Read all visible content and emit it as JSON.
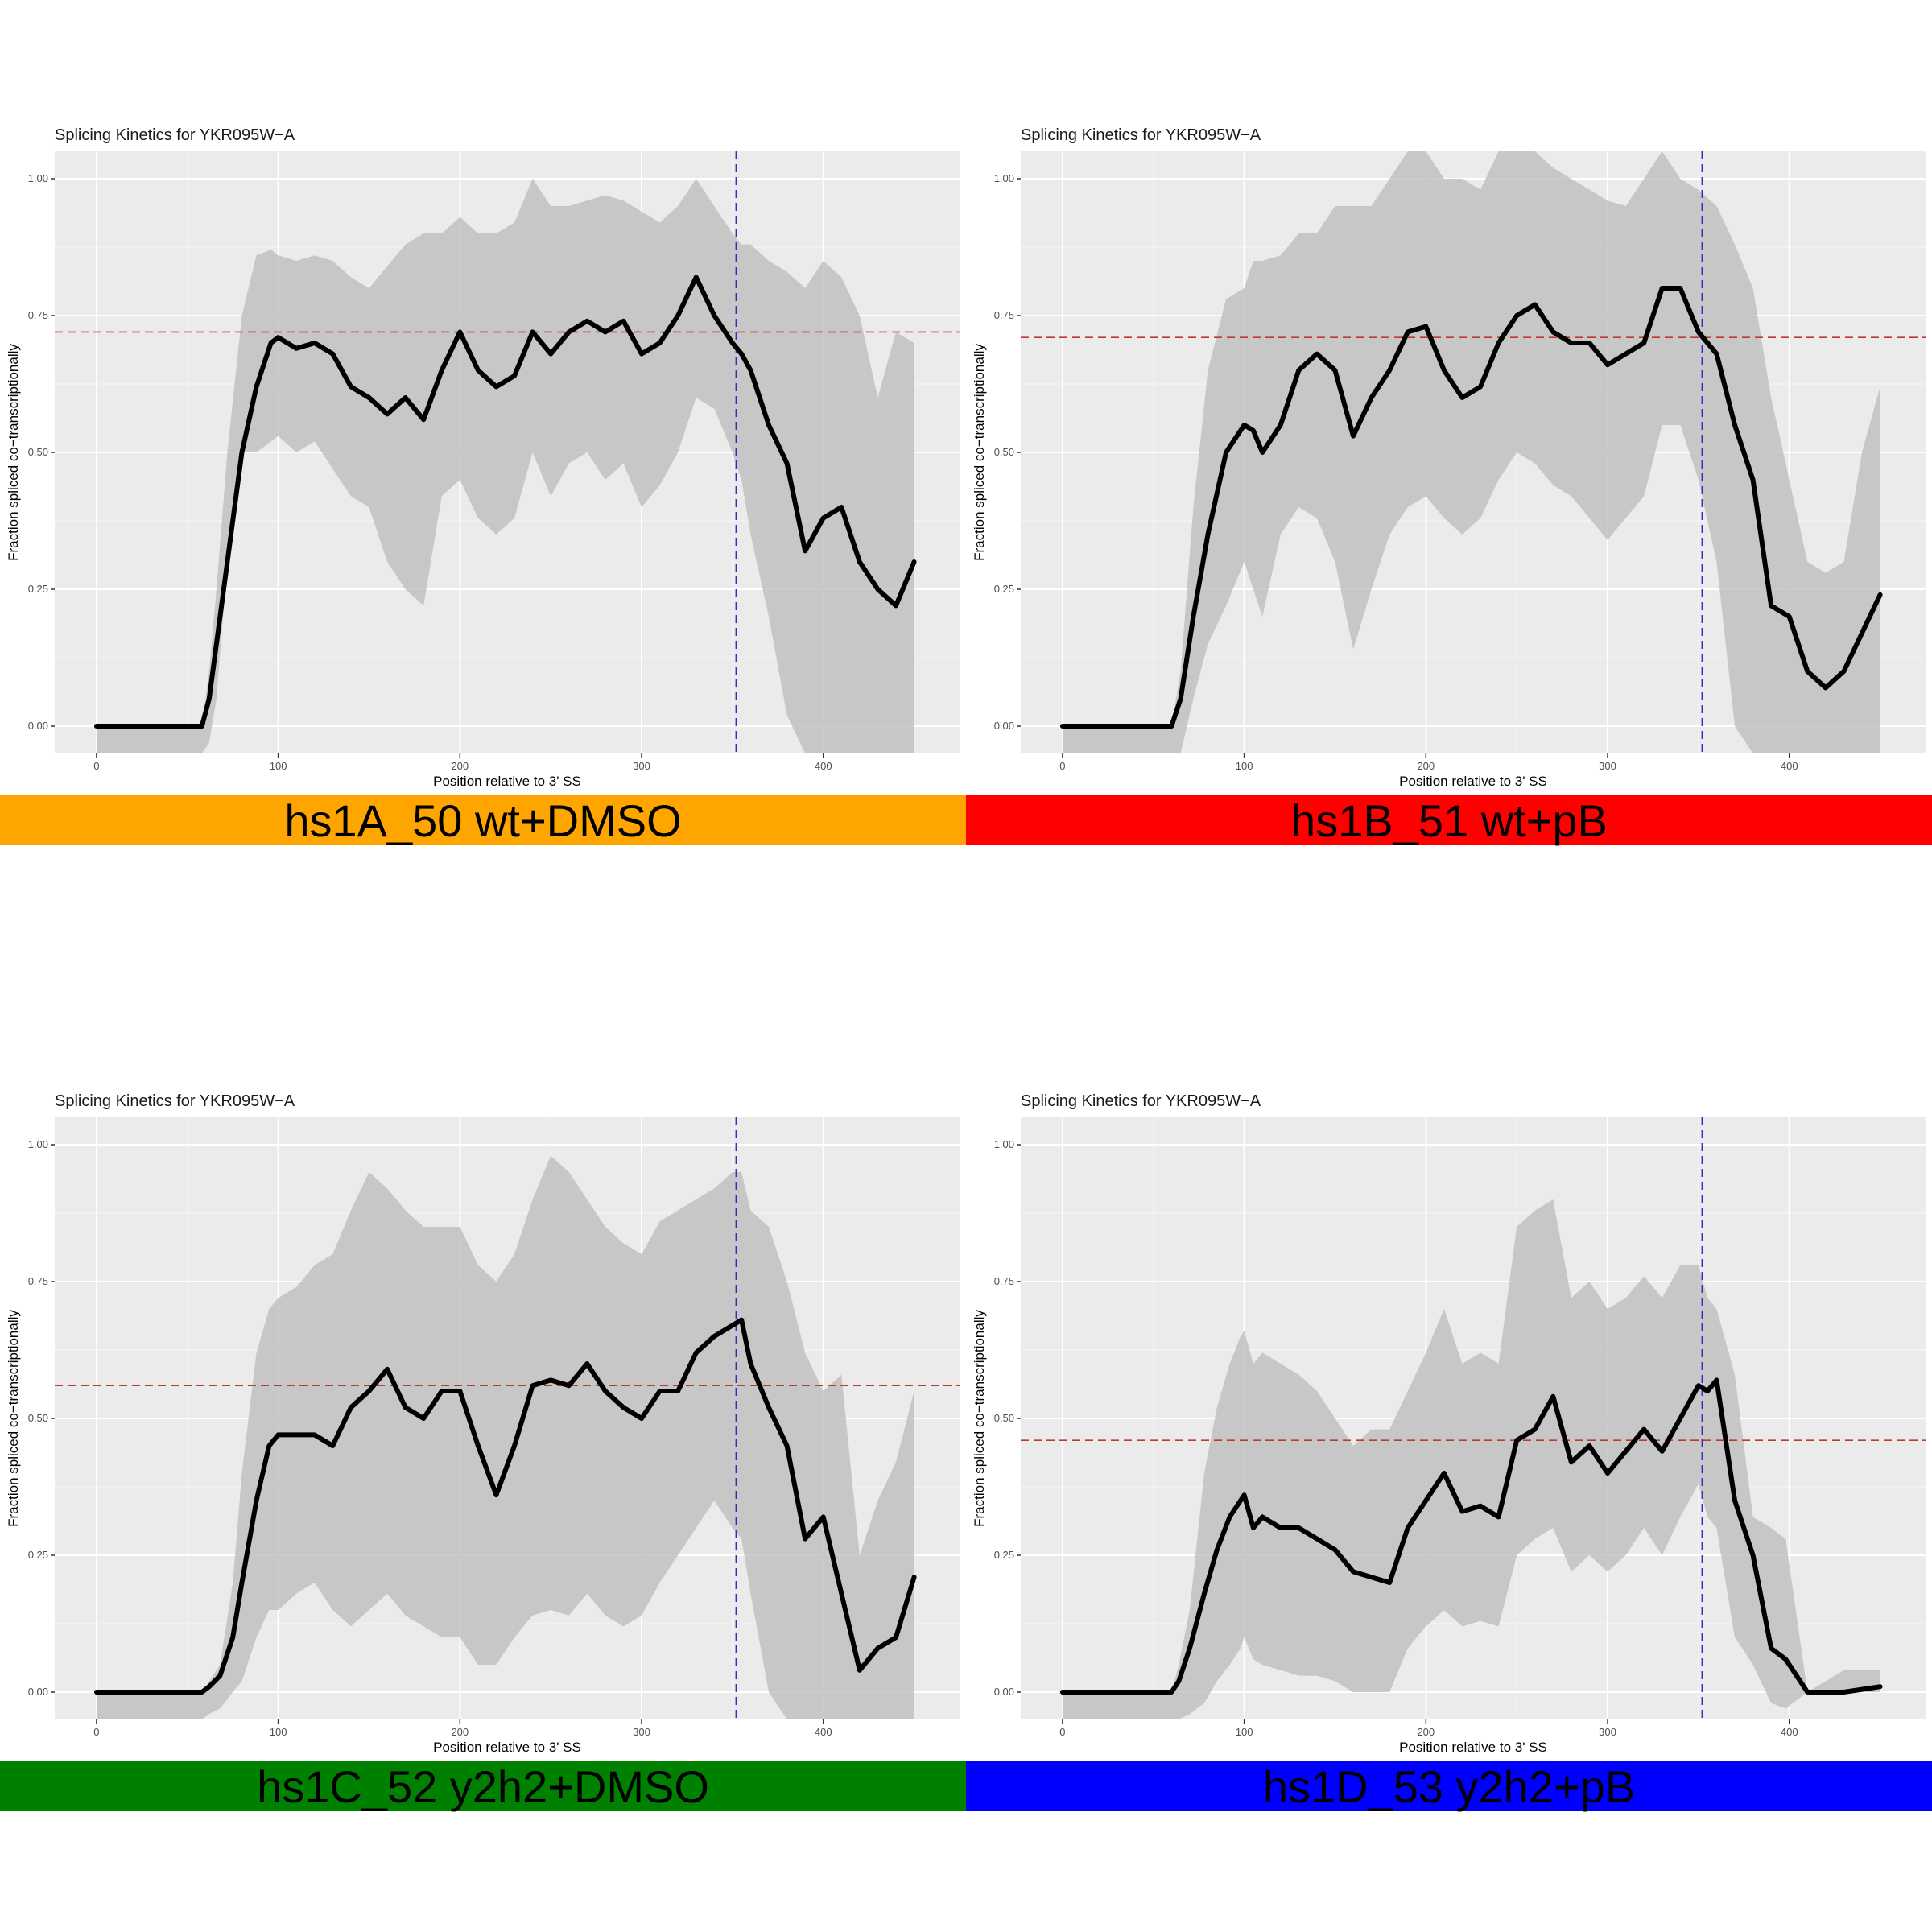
{
  "chart_data": [
    {
      "type": "line",
      "title": "Splicing Kinetics for YKR095W−A",
      "xlabel": "Position relative to 3' SS",
      "ylabel": "Fraction spliced co−transcriptionally",
      "xlim": [
        -23,
        475
      ],
      "ylim": [
        -0.05,
        1.05
      ],
      "x_ticks": [
        "0",
        "100",
        "200",
        "300",
        "400"
      ],
      "y_ticks": [
        "0.00",
        "0.25",
        "0.50",
        "0.75",
        "1.00"
      ],
      "ref_hline": 0.72,
      "ref_vline": 352,
      "label": "hs1A_50 wt+DMSO",
      "label_color": "#FFA500",
      "series": [
        {
          "x": [
            0,
            58,
            62,
            66,
            72,
            80,
            88,
            96,
            100,
            110,
            120,
            130,
            140,
            150,
            160,
            170,
            180,
            190,
            200,
            210,
            220,
            230,
            240,
            250,
            260,
            270,
            280,
            290,
            300,
            310,
            320,
            330,
            340,
            350,
            355,
            360,
            370,
            380,
            390,
            400,
            410,
            420,
            430,
            440,
            450
          ],
          "y": [
            0,
            0,
            0.05,
            0.15,
            0.3,
            0.5,
            0.62,
            0.7,
            0.71,
            0.69,
            0.7,
            0.68,
            0.62,
            0.6,
            0.57,
            0.6,
            0.56,
            0.65,
            0.72,
            0.65,
            0.62,
            0.64,
            0.72,
            0.68,
            0.72,
            0.74,
            0.72,
            0.74,
            0.68,
            0.7,
            0.75,
            0.82,
            0.75,
            0.7,
            0.68,
            0.65,
            0.55,
            0.48,
            0.32,
            0.38,
            0.4,
            0.3,
            0.25,
            0.22,
            0.3
          ],
          "lower": [
            -0.05,
            -0.05,
            -0.03,
            0.05,
            0.3,
            0.5,
            0.5,
            0.52,
            0.53,
            0.5,
            0.52,
            0.47,
            0.42,
            0.4,
            0.3,
            0.25,
            0.22,
            0.42,
            0.45,
            0.38,
            0.35,
            0.38,
            0.5,
            0.42,
            0.48,
            0.5,
            0.45,
            0.48,
            0.4,
            0.44,
            0.5,
            0.6,
            0.58,
            0.5,
            0.45,
            0.35,
            0.2,
            0.02,
            -0.05,
            -0.05,
            -0.05,
            -0.05,
            -0.05,
            -0.05,
            -0.05
          ],
          "upper": [
            0,
            0,
            0.1,
            0.25,
            0.5,
            0.75,
            0.86,
            0.87,
            0.86,
            0.85,
            0.86,
            0.85,
            0.82,
            0.8,
            0.84,
            0.88,
            0.9,
            0.9,
            0.93,
            0.9,
            0.9,
            0.92,
            1.0,
            0.95,
            0.95,
            0.96,
            0.97,
            0.96,
            0.94,
            0.92,
            0.95,
            1.0,
            0.95,
            0.9,
            0.88,
            0.88,
            0.85,
            0.83,
            0.8,
            0.85,
            0.82,
            0.75,
            0.6,
            0.72,
            0.7
          ]
        }
      ]
    },
    {
      "type": "line",
      "title": "Splicing Kinetics for YKR095W−A",
      "xlabel": "Position relative to 3' SS",
      "ylabel": "Fraction spliced co−transcriptionally",
      "xlim": [
        -23,
        475
      ],
      "ylim": [
        -0.05,
        1.05
      ],
      "x_ticks": [
        "0",
        "100",
        "200",
        "300",
        "400"
      ],
      "y_ticks": [
        "0.00",
        "0.25",
        "0.50",
        "0.75",
        "1.00"
      ],
      "ref_hline": 0.71,
      "ref_vline": 352,
      "label": "hs1B_51 wt+pB",
      "label_color": "#FF0000",
      "series": [
        {
          "x": [
            0,
            60,
            65,
            72,
            80,
            90,
            100,
            105,
            110,
            120,
            130,
            140,
            150,
            160,
            170,
            180,
            190,
            200,
            210,
            220,
            230,
            240,
            250,
            260,
            270,
            280,
            290,
            300,
            310,
            320,
            330,
            340,
            350,
            360,
            370,
            380,
            390,
            400,
            410,
            420,
            430,
            440,
            450
          ],
          "y": [
            0,
            0,
            0.05,
            0.2,
            0.35,
            0.5,
            0.55,
            0.54,
            0.5,
            0.55,
            0.65,
            0.68,
            0.65,
            0.53,
            0.6,
            0.65,
            0.72,
            0.73,
            0.65,
            0.6,
            0.62,
            0.7,
            0.75,
            0.77,
            0.72,
            0.7,
            0.7,
            0.66,
            0.68,
            0.7,
            0.8,
            0.8,
            0.72,
            0.68,
            0.55,
            0.45,
            0.22,
            0.2,
            0.1,
            0.07,
            0.1,
            0.17,
            0.24
          ],
          "lower": [
            -0.05,
            -0.05,
            -0.05,
            0.05,
            0.15,
            0.22,
            0.3,
            0.25,
            0.2,
            0.35,
            0.4,
            0.38,
            0.3,
            0.14,
            0.25,
            0.35,
            0.4,
            0.42,
            0.38,
            0.35,
            0.38,
            0.45,
            0.5,
            0.48,
            0.44,
            0.42,
            0.38,
            0.34,
            0.38,
            0.42,
            0.55,
            0.55,
            0.45,
            0.3,
            0.0,
            -0.05,
            -0.05,
            -0.05,
            -0.05,
            -0.05,
            -0.05,
            -0.05,
            -0.05
          ],
          "upper": [
            0,
            0,
            0.1,
            0.4,
            0.65,
            0.78,
            0.8,
            0.85,
            0.85,
            0.86,
            0.9,
            0.9,
            0.95,
            0.95,
            0.95,
            1.0,
            1.05,
            1.05,
            1.0,
            1.0,
            0.98,
            1.05,
            1.05,
            1.05,
            1.02,
            1.0,
            0.98,
            0.96,
            0.95,
            1.0,
            1.05,
            1.0,
            0.98,
            0.95,
            0.88,
            0.8,
            0.6,
            0.45,
            0.3,
            0.28,
            0.3,
            0.5,
            0.62
          ]
        }
      ]
    },
    {
      "type": "line",
      "title": "Splicing Kinetics for YKR095W−A",
      "xlabel": "Position relative to 3' SS",
      "ylabel": "Fraction spliced co−transcriptionally",
      "xlim": [
        -23,
        475
      ],
      "ylim": [
        -0.05,
        1.05
      ],
      "x_ticks": [
        "0",
        "100",
        "200",
        "300",
        "400"
      ],
      "y_ticks": [
        "0.00",
        "0.25",
        "0.50",
        "0.75",
        "1.00"
      ],
      "ref_hline": 0.56,
      "ref_vline": 352,
      "label": "hs1C_52 y2h2+DMSO",
      "label_color": "#008000",
      "series": [
        {
          "x": [
            0,
            58,
            62,
            68,
            75,
            80,
            88,
            95,
            100,
            110,
            120,
            130,
            140,
            150,
            160,
            170,
            180,
            190,
            200,
            210,
            220,
            230,
            240,
            250,
            260,
            270,
            280,
            290,
            300,
            310,
            320,
            330,
            340,
            350,
            355,
            360,
            370,
            380,
            390,
            400,
            410,
            420,
            430,
            440,
            450
          ],
          "y": [
            0,
            0,
            0.01,
            0.03,
            0.1,
            0.2,
            0.35,
            0.45,
            0.47,
            0.47,
            0.47,
            0.45,
            0.52,
            0.55,
            0.59,
            0.52,
            0.5,
            0.55,
            0.55,
            0.45,
            0.36,
            0.45,
            0.56,
            0.57,
            0.56,
            0.6,
            0.55,
            0.52,
            0.5,
            0.55,
            0.55,
            0.62,
            0.65,
            0.67,
            0.68,
            0.6,
            0.52,
            0.45,
            0.28,
            0.32,
            0.18,
            0.04,
            0.08,
            0.1,
            0.21
          ],
          "lower": [
            -0.05,
            -0.05,
            -0.04,
            -0.03,
            0.0,
            0.02,
            0.1,
            0.15,
            0.15,
            0.18,
            0.2,
            0.15,
            0.12,
            0.15,
            0.18,
            0.14,
            0.12,
            0.1,
            0.1,
            0.05,
            0.05,
            0.1,
            0.14,
            0.15,
            0.14,
            0.18,
            0.14,
            0.12,
            0.14,
            0.2,
            0.25,
            0.3,
            0.35,
            0.3,
            0.28,
            0.18,
            0.0,
            -0.05,
            -0.05,
            -0.05,
            -0.05,
            -0.05,
            -0.05,
            -0.05,
            -0.05
          ],
          "upper": [
            0,
            0,
            0.02,
            0.05,
            0.2,
            0.4,
            0.62,
            0.7,
            0.72,
            0.74,
            0.78,
            0.8,
            0.88,
            0.95,
            0.92,
            0.88,
            0.85,
            0.85,
            0.85,
            0.78,
            0.75,
            0.8,
            0.9,
            0.98,
            0.95,
            0.9,
            0.85,
            0.82,
            0.8,
            0.86,
            0.88,
            0.9,
            0.92,
            0.95,
            0.95,
            0.88,
            0.85,
            0.75,
            0.62,
            0.55,
            0.58,
            0.25,
            0.35,
            0.42,
            0.55
          ]
        }
      ]
    },
    {
      "type": "line",
      "title": "Splicing Kinetics for YKR095W−A",
      "xlabel": "Position relative to 3' SS",
      "ylabel": "Fraction spliced co−transcriptionally",
      "xlim": [
        -23,
        475
      ],
      "ylim": [
        -0.05,
        1.05
      ],
      "x_ticks": [
        "0",
        "100",
        "200",
        "300",
        "400"
      ],
      "y_ticks": [
        "0.00",
        "0.25",
        "0.50",
        "0.75",
        "1.00"
      ],
      "ref_hline": 0.46,
      "ref_vline": 352,
      "label": "hs1D_53 y2h2+pB",
      "label_color": "#0000FF",
      "series": [
        {
          "x": [
            0,
            60,
            64,
            70,
            78,
            85,
            92,
            98,
            100,
            105,
            110,
            120,
            130,
            140,
            150,
            160,
            170,
            180,
            190,
            200,
            210,
            220,
            230,
            240,
            250,
            260,
            270,
            280,
            290,
            300,
            310,
            320,
            330,
            340,
            350,
            355,
            360,
            370,
            380,
            390,
            398,
            410,
            420,
            430,
            440,
            450
          ],
          "y": [
            0,
            0,
            0.02,
            0.08,
            0.18,
            0.26,
            0.32,
            0.35,
            0.36,
            0.3,
            0.32,
            0.3,
            0.3,
            0.28,
            0.26,
            0.22,
            0.21,
            0.2,
            0.3,
            0.35,
            0.4,
            0.33,
            0.34,
            0.32,
            0.46,
            0.48,
            0.54,
            0.42,
            0.45,
            0.4,
            0.44,
            0.48,
            0.44,
            0.5,
            0.56,
            0.55,
            0.57,
            0.35,
            0.25,
            0.08,
            0.06,
            0.0,
            0.0,
            0.0,
            0.005,
            0.01
          ],
          "lower": [
            -0.05,
            -0.05,
            -0.05,
            -0.04,
            -0.02,
            0.02,
            0.05,
            0.08,
            0.1,
            0.06,
            0.05,
            0.04,
            0.03,
            0.03,
            0.02,
            0.0,
            0.0,
            0.0,
            0.08,
            0.12,
            0.15,
            0.12,
            0.13,
            0.12,
            0.25,
            0.28,
            0.3,
            0.22,
            0.25,
            0.22,
            0.25,
            0.3,
            0.25,
            0.32,
            0.38,
            0.32,
            0.3,
            0.1,
            0.05,
            -0.02,
            -0.03,
            0.0,
            0.0,
            0.0,
            0.0,
            0.0
          ],
          "upper": [
            0,
            0,
            0.05,
            0.15,
            0.4,
            0.52,
            0.6,
            0.65,
            0.66,
            0.6,
            0.62,
            0.6,
            0.58,
            0.55,
            0.5,
            0.45,
            0.48,
            0.48,
            0.55,
            0.62,
            0.7,
            0.6,
            0.62,
            0.6,
            0.85,
            0.88,
            0.9,
            0.72,
            0.75,
            0.7,
            0.72,
            0.76,
            0.72,
            0.78,
            0.78,
            0.72,
            0.7,
            0.58,
            0.32,
            0.3,
            0.28,
            0.0,
            0.02,
            0.04,
            0.04,
            0.04
          ]
        }
      ]
    }
  ]
}
